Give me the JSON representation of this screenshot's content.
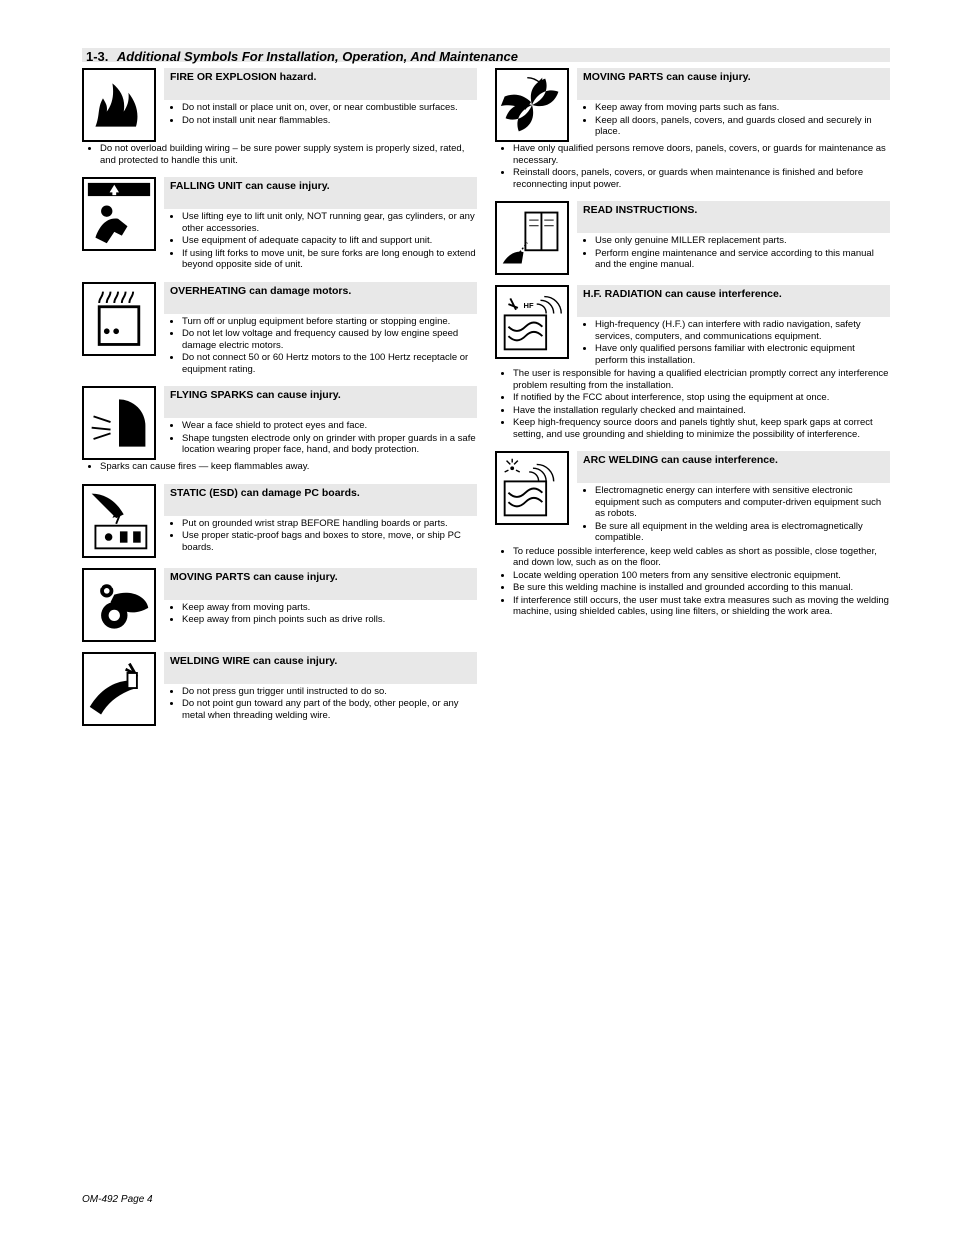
{
  "page": {
    "number": "OM-492 Page 4",
    "section_number": "1-3.",
    "section_title": "Additional Symbols For Installation, Operation, And Maintenance"
  },
  "left": [
    {
      "id": "fire",
      "title": "FIRE OR EXPLOSION hazard.",
      "icon": "fire",
      "items_inside": [
        "Do not install or place unit on, over, or near combustible surfaces.",
        "Do not install unit near flammables."
      ],
      "items_outdent": [
        "Do not overload building wiring – be sure power supply system is properly sized, rated, and protected to handle this unit."
      ]
    },
    {
      "id": "falling",
      "title": "FALLING UNIT can cause injury.",
      "icon": "falling",
      "items_inside": [
        "Use lifting eye to lift unit only, NOT running gear, gas cylinders, or any other accessories.",
        "Use equipment of adequate capacity to lift and support unit.",
        "If using lift forks to move unit, be sure forks are long enough to extend beyond opposite side of unit."
      ]
    },
    {
      "id": "overheating",
      "title": "OVERHEATING can damage motors.",
      "icon": "overheating",
      "items_inside": [
        "Turn off or unplug equipment before starting or stopping engine.",
        "Do not let low voltage and frequency caused by low engine speed damage electric motors.",
        "Do not connect 50 or 60 Hertz motors to the 100 Hertz receptacle or equipment rating."
      ]
    },
    {
      "id": "sparks",
      "title": "FLYING SPARKS can cause injury.",
      "icon": "sparks",
      "items_inside": [
        "Wear a face shield to protect eyes and face.",
        "Shape tungsten electrode only on grinder with proper guards in a safe location wearing proper face, hand, and body protection."
      ],
      "items_outdent": [
        "Sparks can cause fires — keep flammables away."
      ]
    },
    {
      "id": "esd",
      "title": "STATIC (ESD) can damage PC boards.",
      "icon": "esd",
      "items_inside": [
        "Put on grounded wrist strap BEFORE handling boards or parts.",
        "Use proper static-proof bags and boxes to store, move, or ship PC boards."
      ]
    },
    {
      "id": "moving",
      "title": "MOVING PARTS can cause injury.",
      "icon": "moving",
      "items_inside": [
        "Keep away from moving parts.",
        "Keep away from pinch points such as drive rolls."
      ]
    },
    {
      "id": "wire",
      "title": "WELDING WIRE can cause injury.",
      "icon": "wire",
      "items_inside": [
        "Do not press gun trigger until instructed to do so.",
        "Do not point gun toward any part of the body, other people, or any metal when threading welding wire."
      ]
    }
  ],
  "right": [
    {
      "id": "moving2",
      "title": "MOVING PARTS can cause injury.",
      "icon": "fan",
      "items_inside": [
        "Keep away from moving parts such as fans.",
        "Keep all doors, panels, covers, and guards closed and securely in place."
      ],
      "items_outdent": [
        "Have only qualified persons remove doors, panels, covers, or guards for maintenance as necessary.",
        "Reinstall doors, panels, covers, or guards when maintenance is finished and before reconnecting input power."
      ]
    },
    {
      "id": "manual",
      "title": "READ INSTRUCTIONS.",
      "icon": "manual",
      "items_inside": [
        "Use only genuine MILLER replacement parts.",
        "Perform engine maintenance and service according to this manual and the engine manual."
      ]
    },
    {
      "id": "hf",
      "title": "H.F. RADIATION can cause interference.",
      "icon": "hf",
      "items_inside": [
        "High-frequency (H.F.) can interfere with radio navigation, safety services, computers, and communications equipment.",
        "Have only qualified persons familiar with electronic equipment perform this installation."
      ],
      "items_outdent": [
        "The user is responsible for having a qualified electrician promptly correct any interference problem resulting from the installation.",
        "If notified by the FCC about interference, stop using the equipment at once.",
        "Have the installation regularly checked and maintained.",
        "Keep high-frequency source doors and panels tightly shut, keep spark gaps at correct setting, and use grounding and shielding to minimize the possibility of interference."
      ]
    },
    {
      "id": "arc",
      "title": "ARC WELDING can cause interference.",
      "icon": "arc",
      "items_inside": [
        "Electromagnetic energy can interfere with sensitive electronic equipment such as computers and computer-driven equipment such as robots.",
        "Be sure all equipment in the welding area is electromagnetically compatible."
      ],
      "items_outdent": [
        "To reduce possible interference, keep weld cables as short as possible, close together, and down low, such as on the floor.",
        "Locate welding operation 100 meters from any sensitive electronic equipment.",
        "Be sure this welding machine is installed and grounded according to this manual.",
        "If interference still occurs, the user must take extra measures such as moving the welding machine, using shielded cables, using line filters, or shielding the work area."
      ]
    }
  ]
}
